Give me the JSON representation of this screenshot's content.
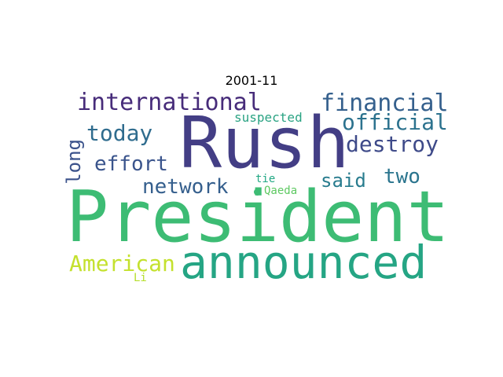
{
  "title": "2001-11",
  "colors": {
    "background": "#ffffff",
    "president": "#3dbc74",
    "rush": "#433e85",
    "announced": "#25a584",
    "american": "#c4e12e",
    "dot": "#3dbc74"
  },
  "words": {
    "president": "President",
    "rush": "Rush",
    "announced": "announced",
    "international": "international",
    "financial": "financial",
    "official": "official",
    "today": "today",
    "destroy": "destroy",
    "suspected": "suspected",
    "long": "long",
    "effort": "effort",
    "two": "two",
    "network": "network",
    "said": "said",
    "tie": "tie",
    "qaeda": "Qaeda",
    "american": "American",
    "li": "Li"
  }
}
